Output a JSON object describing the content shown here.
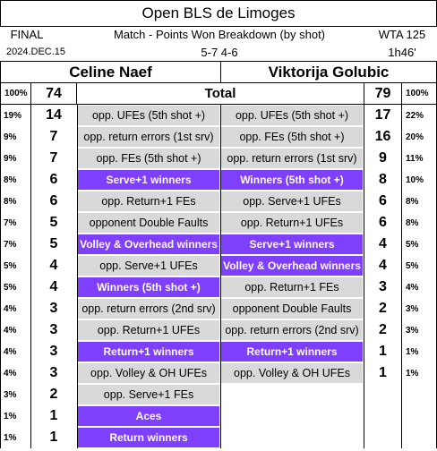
{
  "header": {
    "title": "Open BLS de Limoges",
    "status": "FINAL",
    "subtitle": "Match - Points Won Breakdown (by shot)",
    "tournament": "WTA 125",
    "date": "2024.DEC.15",
    "score": "5-7 4-6",
    "duration": "1h46'"
  },
  "players": [
    "Celine Naef",
    "Viktorija Golubic"
  ],
  "total": {
    "left_pct": "100%",
    "left": 74,
    "label": "Total",
    "right": 79,
    "right_pct": "100%"
  },
  "rows": [
    {
      "left_pct": "19%",
      "left": 14,
      "left_label": "opp. UFEs (5th shot +)",
      "right_label": "opp. UFEs (5th shot +)",
      "right": 17,
      "right_pct": "22%"
    },
    {
      "left_pct": "9%",
      "left": 7,
      "left_label": "opp. return errors (1st srv)",
      "right_label": "opp. FEs (5th shot +)",
      "right": 16,
      "right_pct": "20%"
    },
    {
      "left_pct": "9%",
      "left": 7,
      "left_label": "opp. FEs (5th shot +)",
      "right_label": "opp. return errors (1st srv)",
      "right": 9,
      "right_pct": "11%"
    },
    {
      "left_pct": "8%",
      "left": 6,
      "left_label": "Serve+1 winners",
      "right_label": "Winners (5th shot +)",
      "right": 8,
      "right_pct": "10%"
    },
    {
      "left_pct": "8%",
      "left": 6,
      "left_label": "opp. Return+1 FEs",
      "right_label": "opp. Serve+1 UFEs",
      "right": 6,
      "right_pct": "8%"
    },
    {
      "left_pct": "7%",
      "left": 5,
      "left_label": "opponent Double Faults",
      "right_label": "opp. Return+1 UFEs",
      "right": 6,
      "right_pct": "8%"
    },
    {
      "left_pct": "7%",
      "left": 5,
      "left_label": "Volley & Overhead winners",
      "right_label": "Serve+1 winners",
      "right": 4,
      "right_pct": "5%"
    },
    {
      "left_pct": "5%",
      "left": 4,
      "left_label": "opp. Serve+1 UFEs",
      "right_label": "Volley & Overhead winners",
      "right": 4,
      "right_pct": "5%"
    },
    {
      "left_pct": "5%",
      "left": 4,
      "left_label": "Winners (5th shot +)",
      "right_label": "opp. Return+1 FEs",
      "right": 3,
      "right_pct": "4%"
    },
    {
      "left_pct": "4%",
      "left": 3,
      "left_label": "opp. return errors (2nd srv)",
      "right_label": "opponent Double Faults",
      "right": 2,
      "right_pct": "3%"
    },
    {
      "left_pct": "4%",
      "left": 3,
      "left_label": "opp. Return+1 UFEs",
      "right_label": "opp. return errors (2nd srv)",
      "right": 2,
      "right_pct": "3%"
    },
    {
      "left_pct": "4%",
      "left": 3,
      "left_label": "Return+1 winners",
      "right_label": "Return+1 winners",
      "right": 1,
      "right_pct": "1%"
    },
    {
      "left_pct": "4%",
      "left": 3,
      "left_label": "opp. Volley & OH UFEs",
      "right_label": "opp. Volley & OH UFEs",
      "right": 1,
      "right_pct": "1%"
    },
    {
      "left_pct": "3%",
      "left": 2,
      "left_label": "opp. Serve+1 FEs"
    },
    {
      "left_pct": "1%",
      "left": 1,
      "left_label": "Aces"
    },
    {
      "left_pct": "1%",
      "left": 1,
      "left_label": "Return winners"
    }
  ]
}
